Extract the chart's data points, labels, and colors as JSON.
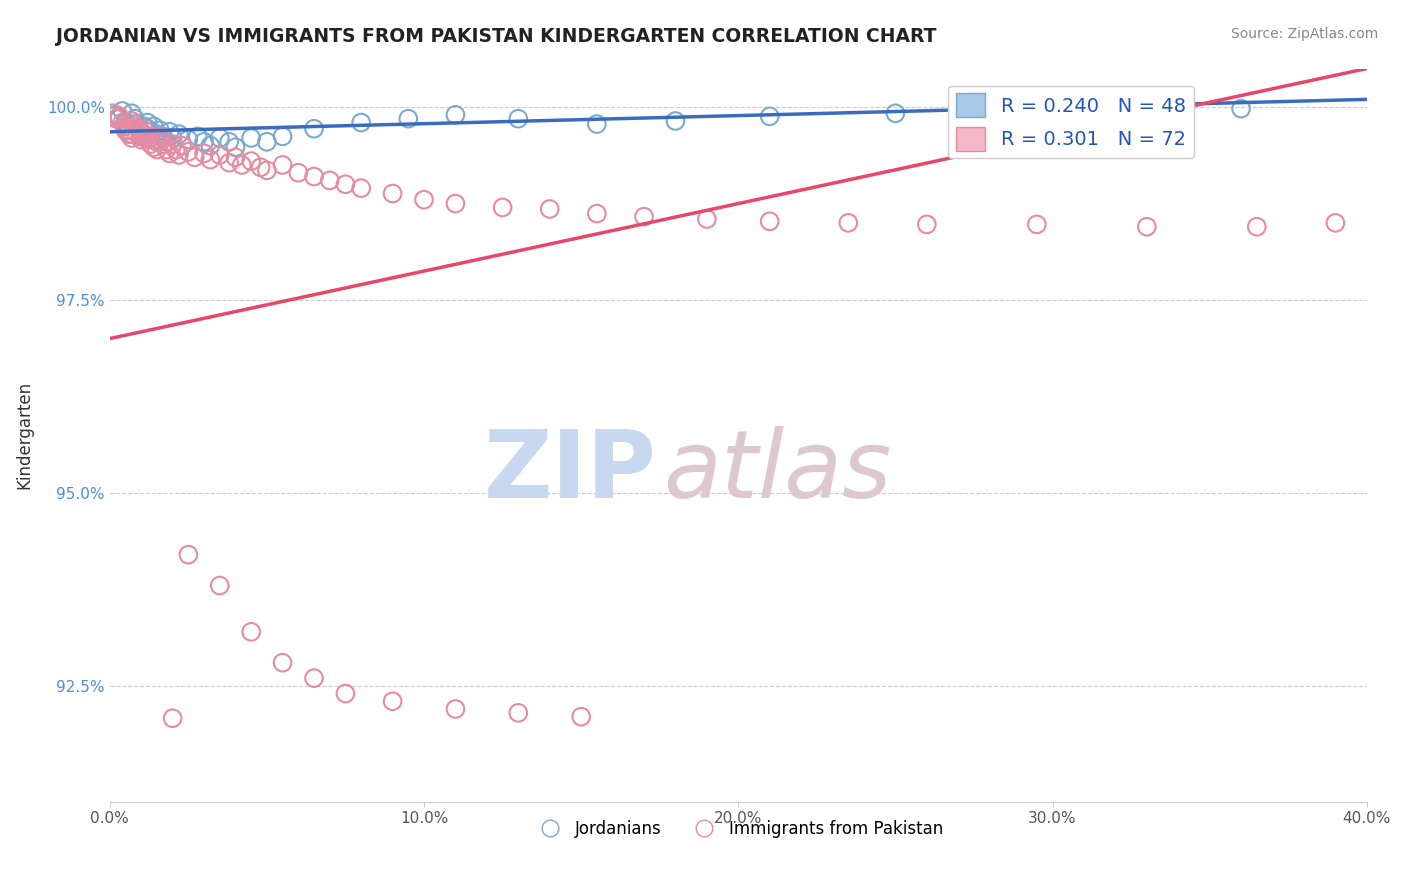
{
  "title": "JORDANIAN VS IMMIGRANTS FROM PAKISTAN KINDERGARTEN CORRELATION CHART",
  "source_text": "Source: ZipAtlas.com",
  "xlabel": "",
  "ylabel": "Kindergarten",
  "xlim": [
    0.0,
    0.4
  ],
  "ylim": [
    0.91,
    1.005
  ],
  "xtick_labels": [
    "0.0%",
    "10.0%",
    "20.0%",
    "30.0%",
    "40.0%"
  ],
  "xtick_vals": [
    0.0,
    0.1,
    0.2,
    0.3,
    0.4
  ],
  "ytick_labels": [
    "92.5%",
    "95.0%",
    "97.5%",
    "100.0%"
  ],
  "ytick_vals": [
    0.925,
    0.95,
    0.975,
    1.0
  ],
  "blue_color": "#a8c8e8",
  "blue_edge_color": "#7aaad0",
  "pink_color": "#f4b8c8",
  "pink_edge_color": "#e88aa0",
  "blue_line_color": "#3a6bbf",
  "pink_line_color": "#e8476a",
  "legend_R_blue": "0.240",
  "legend_N_blue": "48",
  "legend_R_pink": "0.301",
  "legend_N_pink": "72",
  "legend_label_blue": "Jordanians",
  "legend_label_pink": "Immigrants from Pakistan",
  "blue_scatter_x": [
    0.002,
    0.003,
    0.004,
    0.005,
    0.005,
    0.006,
    0.007,
    0.007,
    0.008,
    0.008,
    0.009,
    0.01,
    0.01,
    0.011,
    0.012,
    0.012,
    0.013,
    0.013,
    0.014,
    0.015,
    0.015,
    0.016,
    0.017,
    0.018,
    0.019,
    0.02,
    0.022,
    0.025,
    0.028,
    0.03,
    0.032,
    0.035,
    0.038,
    0.04,
    0.045,
    0.05,
    0.055,
    0.065,
    0.08,
    0.095,
    0.11,
    0.13,
    0.155,
    0.18,
    0.21,
    0.25,
    0.3,
    0.36
  ],
  "blue_scatter_y": [
    0.999,
    0.9985,
    0.9995,
    0.998,
    0.9975,
    0.997,
    0.9965,
    0.9992,
    0.9985,
    0.9978,
    0.9972,
    0.9968,
    0.9962,
    0.9975,
    0.998,
    0.9972,
    0.9968,
    0.996,
    0.9975,
    0.9965,
    0.9958,
    0.997,
    0.9962,
    0.9955,
    0.9968,
    0.996,
    0.9965,
    0.9958,
    0.9962,
    0.9955,
    0.995,
    0.996,
    0.9955,
    0.9948,
    0.996,
    0.9955,
    0.9962,
    0.9972,
    0.998,
    0.9985,
    0.999,
    0.9985,
    0.9978,
    0.9982,
    0.9988,
    0.9992,
    0.9995,
    0.9998
  ],
  "pink_scatter_x": [
    0.001,
    0.002,
    0.003,
    0.004,
    0.005,
    0.005,
    0.006,
    0.007,
    0.007,
    0.008,
    0.008,
    0.009,
    0.01,
    0.01,
    0.011,
    0.012,
    0.012,
    0.013,
    0.014,
    0.015,
    0.015,
    0.016,
    0.017,
    0.018,
    0.019,
    0.02,
    0.021,
    0.022,
    0.023,
    0.025,
    0.027,
    0.03,
    0.032,
    0.035,
    0.038,
    0.04,
    0.042,
    0.045,
    0.048,
    0.05,
    0.055,
    0.06,
    0.065,
    0.07,
    0.075,
    0.08,
    0.09,
    0.1,
    0.11,
    0.125,
    0.14,
    0.155,
    0.17,
    0.19,
    0.21,
    0.235,
    0.26,
    0.295,
    0.33,
    0.365,
    0.39,
    0.025,
    0.035,
    0.045,
    0.055,
    0.065,
    0.075,
    0.09,
    0.11,
    0.13,
    0.15,
    0.02
  ],
  "pink_scatter_y": [
    0.9992,
    0.9985,
    0.9988,
    0.998,
    0.9975,
    0.997,
    0.9965,
    0.996,
    0.9982,
    0.9975,
    0.9968,
    0.9972,
    0.9965,
    0.9958,
    0.997,
    0.9962,
    0.9958,
    0.9952,
    0.9948,
    0.9955,
    0.9945,
    0.9962,
    0.9952,
    0.9945,
    0.994,
    0.9952,
    0.9945,
    0.9938,
    0.995,
    0.9942,
    0.9935,
    0.994,
    0.9932,
    0.9938,
    0.9928,
    0.9935,
    0.9925,
    0.993,
    0.9922,
    0.9918,
    0.9925,
    0.9915,
    0.991,
    0.9905,
    0.99,
    0.9895,
    0.9888,
    0.988,
    0.9875,
    0.987,
    0.9868,
    0.9862,
    0.9858,
    0.9855,
    0.9852,
    0.985,
    0.9848,
    0.9848,
    0.9845,
    0.9845,
    0.985,
    0.942,
    0.938,
    0.932,
    0.928,
    0.926,
    0.924,
    0.923,
    0.922,
    0.9215,
    0.921,
    0.9208
  ]
}
